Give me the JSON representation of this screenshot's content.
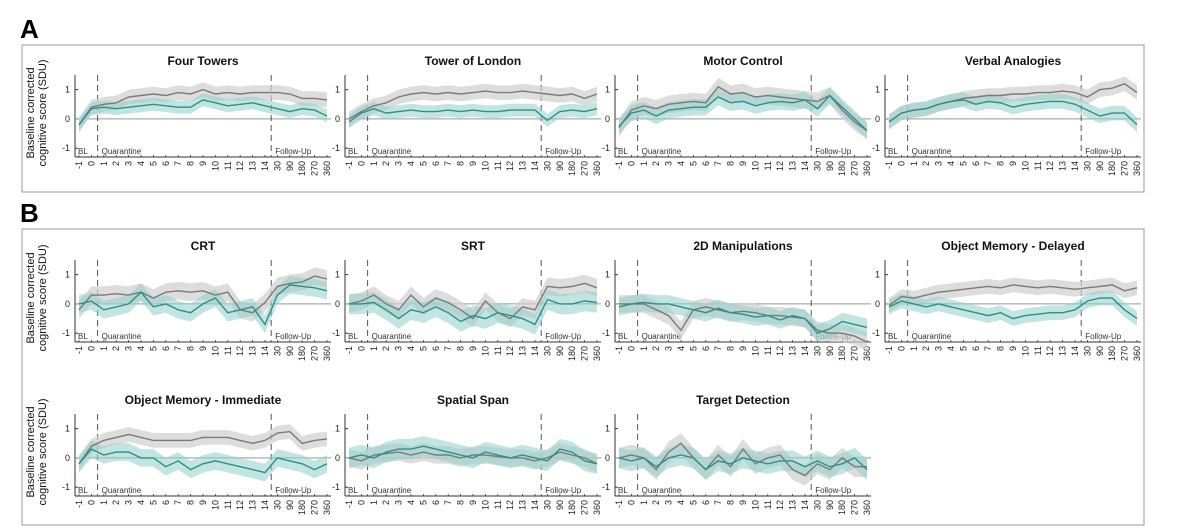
{
  "figure": {
    "y_axis_label_line1": "Baseline corrected",
    "y_axis_label_line2": "cognitive score (SDU)",
    "phase_labels": [
      "BL",
      "Quarantine",
      "Follow-Up"
    ],
    "section_a_label": "A",
    "section_b_label": "B"
  },
  "colors": {
    "gray_line": "#7a7a7a",
    "gray_band": "#cfcfcf",
    "teal_line": "#2e8f88",
    "teal_band": "#8fcfca",
    "zero_line": "#999999"
  },
  "chart_data": [
    {
      "section": "A",
      "type": "line",
      "title": "Four Towers",
      "x": [
        "-1",
        "0",
        "1",
        "2",
        "3",
        "4",
        "5",
        "6",
        "7",
        "8",
        "9",
        "10",
        "11",
        "12",
        "13",
        "14",
        "30",
        "90",
        "180",
        "270",
        "360"
      ],
      "ylim": [
        -1.3,
        1.5
      ],
      "yticks": [
        -1,
        0,
        1
      ],
      "bl_index": 1,
      "followup_index": 15,
      "series": [
        {
          "values": [
            -0.2,
            0.4,
            0.5,
            0.55,
            0.75,
            0.8,
            0.85,
            0.8,
            0.9,
            0.85,
            1.0,
            0.85,
            0.9,
            0.85,
            0.9,
            0.9,
            0.9,
            0.85,
            0.7,
            0.7,
            0.65
          ],
          "band": 0.25
        },
        {
          "values": [
            -0.2,
            0.35,
            0.4,
            0.35,
            0.4,
            0.45,
            0.5,
            0.45,
            0.4,
            0.4,
            0.65,
            0.55,
            0.45,
            0.5,
            0.55,
            0.45,
            0.35,
            0.25,
            0.35,
            0.3,
            0.1
          ],
          "band": 0.22
        }
      ]
    },
    {
      "section": "A",
      "type": "line",
      "title": "Tower of London",
      "x": [
        "-1",
        "0",
        "1",
        "2",
        "3",
        "4",
        "5",
        "6",
        "7",
        "8",
        "9",
        "10",
        "11",
        "12",
        "13",
        "14",
        "30",
        "90",
        "180",
        "270",
        "360"
      ],
      "ylim": [
        -1.3,
        1.5
      ],
      "yticks": [
        -1,
        0,
        1
      ],
      "bl_index": 1,
      "followup_index": 15,
      "series": [
        {
          "values": [
            0.0,
            0.25,
            0.45,
            0.55,
            0.75,
            0.85,
            0.9,
            0.85,
            0.9,
            0.85,
            0.9,
            0.95,
            0.9,
            0.9,
            0.95,
            0.9,
            0.85,
            0.8,
            0.85,
            0.7,
            0.85
          ],
          "band": 0.25
        },
        {
          "values": [
            -0.1,
            0.2,
            0.35,
            0.2,
            0.25,
            0.3,
            0.25,
            0.25,
            0.3,
            0.25,
            0.3,
            0.25,
            0.25,
            0.3,
            0.3,
            0.3,
            -0.05,
            0.25,
            0.3,
            0.25,
            0.35
          ],
          "band": 0.22
        }
      ]
    },
    {
      "section": "A",
      "type": "line",
      "title": "Motor Control",
      "x": [
        "-1",
        "0",
        "1",
        "2",
        "3",
        "4",
        "5",
        "6",
        "7",
        "8",
        "9",
        "10",
        "11",
        "12",
        "13",
        "14",
        "30",
        "90",
        "180",
        "270",
        "360"
      ],
      "ylim": [
        -1.3,
        1.5
      ],
      "yticks": [
        -1,
        0,
        1
      ],
      "bl_index": 1,
      "followup_index": 15,
      "series": [
        {
          "values": [
            -0.3,
            0.3,
            0.45,
            0.35,
            0.5,
            0.55,
            0.6,
            0.55,
            1.1,
            0.85,
            0.9,
            0.75,
            0.8,
            0.75,
            0.7,
            0.65,
            0.6,
            0.8,
            0.3,
            -0.1,
            -0.4
          ],
          "band": 0.3
        },
        {
          "values": [
            -0.25,
            0.2,
            0.3,
            0.1,
            0.3,
            0.35,
            0.4,
            0.4,
            0.75,
            0.55,
            0.6,
            0.45,
            0.55,
            0.6,
            0.55,
            0.65,
            0.35,
            0.8,
            0.4,
            0.0,
            -0.4
          ],
          "band": 0.28
        }
      ]
    },
    {
      "section": "A",
      "type": "line",
      "title": "Verbal Analogies",
      "x": [
        "-1",
        "0",
        "1",
        "2",
        "3",
        "4",
        "5",
        "6",
        "7",
        "8",
        "9",
        "10",
        "11",
        "12",
        "13",
        "14",
        "30",
        "90",
        "180",
        "270",
        "360"
      ],
      "ylim": [
        -1.3,
        1.5
      ],
      "yticks": [
        -1,
        0,
        1
      ],
      "bl_index": 1,
      "followup_index": 15,
      "series": [
        {
          "values": [
            -0.1,
            0.2,
            0.3,
            0.35,
            0.5,
            0.6,
            0.7,
            0.75,
            0.8,
            0.8,
            0.85,
            0.85,
            0.9,
            0.9,
            0.95,
            0.9,
            0.75,
            1.0,
            1.05,
            1.2,
            0.9
          ],
          "band": 0.25
        },
        {
          "values": [
            -0.1,
            0.2,
            0.3,
            0.35,
            0.5,
            0.6,
            0.65,
            0.5,
            0.6,
            0.55,
            0.4,
            0.5,
            0.55,
            0.6,
            0.6,
            0.5,
            0.3,
            0.1,
            0.2,
            0.2,
            -0.2
          ],
          "band": 0.25
        }
      ]
    },
    {
      "section": "B",
      "type": "line",
      "title": "CRT",
      "x": [
        "-1",
        "0",
        "1",
        "2",
        "3",
        "4",
        "5",
        "6",
        "7",
        "8",
        "9",
        "10",
        "11",
        "12",
        "13",
        "14",
        "30",
        "90",
        "180",
        "270",
        "360"
      ],
      "ylim": [
        -1.3,
        1.5
      ],
      "yticks": [
        -1,
        0,
        1
      ],
      "bl_index": 1,
      "followup_index": 15,
      "series": [
        {
          "values": [
            -0.2,
            0.3,
            0.3,
            0.35,
            0.3,
            0.4,
            0.2,
            0.4,
            0.45,
            0.4,
            0.45,
            0.3,
            0.4,
            -0.2,
            -0.3,
            0.05,
            0.6,
            0.7,
            0.75,
            0.95,
            0.85
          ],
          "band": 0.3
        },
        {
          "values": [
            0.0,
            0.1,
            -0.2,
            -0.1,
            0.0,
            0.4,
            -0.1,
            0.0,
            -0.2,
            -0.3,
            0.0,
            0.2,
            -0.3,
            -0.2,
            -0.1,
            -0.7,
            0.3,
            0.65,
            0.6,
            0.55,
            0.45
          ],
          "band": 0.3
        }
      ]
    },
    {
      "section": "B",
      "type": "line",
      "title": "SRT",
      "x": [
        "-1",
        "0",
        "1",
        "2",
        "3",
        "4",
        "5",
        "6",
        "7",
        "8",
        "9",
        "10",
        "11",
        "12",
        "13",
        "14",
        "30",
        "90",
        "180",
        "270",
        "360"
      ],
      "ylim": [
        -1.3,
        1.5
      ],
      "yticks": [
        -1,
        0,
        1
      ],
      "bl_index": 1,
      "followup_index": 15,
      "series": [
        {
          "values": [
            0.0,
            0.1,
            0.3,
            0.0,
            -0.2,
            0.3,
            -0.1,
            0.2,
            0.05,
            -0.2,
            -0.5,
            0.1,
            -0.3,
            -0.5,
            -0.1,
            -0.2,
            0.6,
            0.55,
            0.6,
            0.7,
            0.55
          ],
          "band": 0.3
        },
        {
          "values": [
            0.0,
            0.0,
            0.05,
            -0.2,
            -0.5,
            -0.2,
            -0.3,
            -0.1,
            -0.3,
            -0.6,
            -0.4,
            -0.5,
            -0.3,
            -0.4,
            -0.5,
            -0.7,
            0.15,
            0.0,
            0.0,
            0.1,
            0.05
          ],
          "band": 0.35
        }
      ]
    },
    {
      "section": "B",
      "type": "line",
      "title": "2D Manipulations",
      "x": [
        "-1",
        "0",
        "1",
        "2",
        "3",
        "4",
        "5",
        "6",
        "7",
        "8",
        "9",
        "10",
        "11",
        "12",
        "13",
        "14",
        "30",
        "90",
        "180",
        "270",
        "360"
      ],
      "ylim": [
        -1.3,
        1.5
      ],
      "yticks": [
        -1,
        0,
        1
      ],
      "bl_index": 1,
      "followup_index": 15,
      "series": [
        {
          "values": [
            0.0,
            0.0,
            0.0,
            -0.2,
            -0.4,
            -0.9,
            -0.2,
            -0.1,
            -0.2,
            -0.3,
            -0.25,
            -0.3,
            -0.4,
            -0.4,
            -0.45,
            -0.5,
            -0.9,
            -1.0,
            -1.0,
            -1.1,
            -1.3
          ],
          "band": 0.3
        },
        {
          "values": [
            -0.1,
            0.0,
            0.05,
            0.0,
            0.0,
            -0.1,
            -0.2,
            -0.3,
            -0.15,
            -0.3,
            -0.35,
            -0.45,
            -0.4,
            -0.55,
            -0.4,
            -0.5,
            -1.0,
            -0.85,
            -0.6,
            -0.7,
            -0.8
          ],
          "band": 0.3
        }
      ]
    },
    {
      "section": "B",
      "type": "line",
      "title": "Object Memory - Delayed",
      "x": [
        "-1",
        "0",
        "1",
        "2",
        "3",
        "4",
        "5",
        "6",
        "7",
        "8",
        "9",
        "10",
        "11",
        "12",
        "13",
        "14",
        "30",
        "90",
        "180",
        "270",
        "360"
      ],
      "ylim": [
        -1.3,
        1.5
      ],
      "yticks": [
        -1,
        0,
        1
      ],
      "bl_index": 1,
      "followup_index": 15,
      "series": [
        {
          "values": [
            -0.05,
            0.25,
            0.2,
            0.3,
            0.4,
            0.45,
            0.5,
            0.55,
            0.6,
            0.55,
            0.65,
            0.6,
            0.55,
            0.6,
            0.55,
            0.5,
            0.55,
            0.6,
            0.65,
            0.45,
            0.55
          ],
          "band": 0.25
        },
        {
          "values": [
            -0.1,
            0.1,
            0.0,
            -0.1,
            0.0,
            -0.1,
            -0.2,
            -0.3,
            -0.4,
            -0.3,
            -0.5,
            -0.4,
            -0.35,
            -0.3,
            -0.3,
            -0.2,
            0.1,
            0.2,
            0.2,
            -0.2,
            -0.5
          ],
          "band": 0.25
        }
      ]
    },
    {
      "section": "B",
      "type": "line",
      "title": "Object Memory - Immediate",
      "x": [
        "-1",
        "0",
        "1",
        "2",
        "3",
        "4",
        "5",
        "6",
        "7",
        "8",
        "9",
        "10",
        "11",
        "12",
        "13",
        "14",
        "30",
        "90",
        "180",
        "270",
        "360"
      ],
      "ylim": [
        -1.3,
        1.5
      ],
      "yticks": [
        -1,
        0,
        1
      ],
      "bl_index": 1,
      "followup_index": 15,
      "series": [
        {
          "values": [
            -0.2,
            0.4,
            0.6,
            0.7,
            0.8,
            0.7,
            0.6,
            0.6,
            0.6,
            0.6,
            0.7,
            0.7,
            0.7,
            0.6,
            0.5,
            0.6,
            0.85,
            0.9,
            0.5,
            0.6,
            0.65
          ],
          "band": 0.25
        },
        {
          "values": [
            -0.2,
            0.3,
            0.1,
            0.2,
            0.2,
            0.0,
            0.0,
            -0.3,
            -0.1,
            -0.4,
            -0.2,
            -0.1,
            -0.2,
            -0.3,
            -0.4,
            -0.5,
            0.0,
            -0.1,
            -0.2,
            -0.4,
            -0.2
          ],
          "band": 0.3
        }
      ]
    },
    {
      "section": "B",
      "type": "line",
      "title": "Spatial Span",
      "x": [
        "-1",
        "0",
        "1",
        "2",
        "3",
        "4",
        "5",
        "6",
        "7",
        "8",
        "9",
        "10",
        "11",
        "12",
        "13",
        "14",
        "30",
        "90",
        "180",
        "270",
        "360"
      ],
      "ylim": [
        -1.3,
        1.5
      ],
      "yticks": [
        -1,
        0,
        1
      ],
      "bl_index": 1,
      "followup_index": 15,
      "series": [
        {
          "values": [
            0.0,
            -0.1,
            0.1,
            0.15,
            0.2,
            0.1,
            0.2,
            0.1,
            0.1,
            0.0,
            0.1,
            0.1,
            0.05,
            0.0,
            0.0,
            -0.1,
            0.0,
            0.2,
            0.1,
            0.0,
            -0.2
          ],
          "band": 0.3
        },
        {
          "values": [
            0.0,
            0.1,
            0.0,
            0.2,
            0.3,
            0.3,
            0.4,
            0.3,
            0.2,
            0.1,
            0.0,
            0.2,
            0.1,
            0.0,
            0.1,
            0.0,
            -0.1,
            0.3,
            0.2,
            -0.1,
            -0.2
          ],
          "band": 0.35
        }
      ]
    },
    {
      "section": "B",
      "type": "line",
      "title": "Target Detection",
      "x": [
        "-1",
        "0",
        "1",
        "2",
        "3",
        "4",
        "5",
        "6",
        "7",
        "8",
        "9",
        "10",
        "11",
        "12",
        "13",
        "14",
        "30",
        "90",
        "180",
        "270",
        "360"
      ],
      "ylim": [
        -1.3,
        1.5
      ],
      "yticks": [
        -1,
        0,
        1
      ],
      "bl_index": 1,
      "followup_index": 15,
      "series": [
        {
          "values": [
            0.0,
            0.1,
            0.0,
            -0.4,
            0.2,
            0.5,
            0.0,
            -0.4,
            0.1,
            -0.3,
            0.3,
            -0.2,
            0.0,
            0.1,
            -0.4,
            -0.6,
            -0.2,
            -0.4,
            0.0,
            -0.3,
            -0.3
          ],
          "band": 0.35
        },
        {
          "values": [
            0.0,
            -0.1,
            0.0,
            -0.3,
            0.0,
            0.1,
            0.0,
            -0.4,
            -0.1,
            -0.2,
            0.0,
            -0.1,
            -0.2,
            -0.1,
            -0.1,
            -0.3,
            -0.1,
            -0.3,
            -0.2,
            0.0,
            -0.4
          ],
          "band": 0.35
        }
      ]
    }
  ]
}
